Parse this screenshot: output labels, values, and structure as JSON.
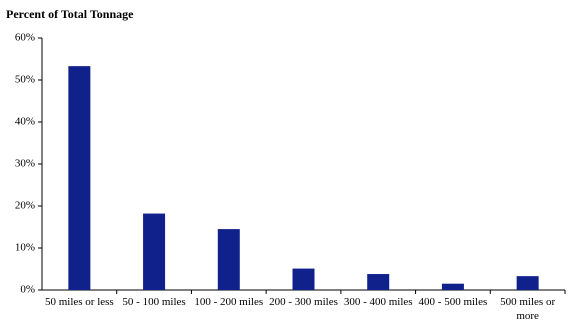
{
  "chart_data": {
    "type": "bar",
    "title": "Percent of Total Tonnage",
    "categories": [
      "50 miles or less",
      "50 - 100 miles",
      "100 - 200 miles",
      "200 - 300 miles",
      "300 - 400 miles",
      "400 - 500 miles",
      "500 miles or more"
    ],
    "values": [
      53.3,
      18.2,
      14.5,
      5.1,
      3.8,
      1.5,
      3.3
    ],
    "color": "#10218b",
    "ylim": [
      0,
      60
    ],
    "yticks": [
      {
        "value": 0,
        "label": "0%"
      },
      {
        "value": 10,
        "label": "10%"
      },
      {
        "value": 20,
        "label": "20%"
      },
      {
        "value": 30,
        "label": "30%"
      },
      {
        "value": 40,
        "label": "40%"
      },
      {
        "value": 50,
        "label": "50%"
      },
      {
        "value": 60,
        "label": "60%"
      }
    ],
    "grid": false
  }
}
